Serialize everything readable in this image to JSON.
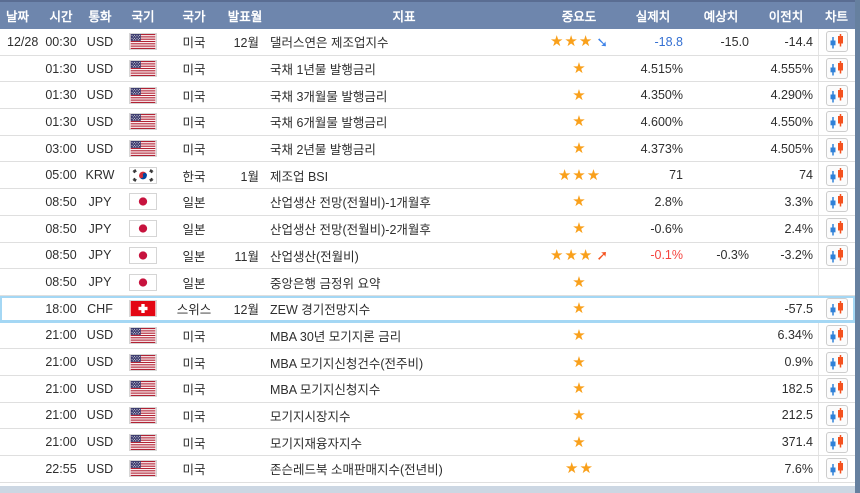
{
  "colors": {
    "header_bg": "#6E86AD",
    "star": "#F9A01B",
    "actual_blue": "#3470D2",
    "actual_red": "#F4443F",
    "arrow_up": "#F4511E",
    "arrow_down": "#3D82E8",
    "highlight_border": "#A4D7F4",
    "scrollbar": "#66809F"
  },
  "icons": {
    "star": "star-icon",
    "arrow_down": "southeast-arrow-icon",
    "arrow_up": "northeast-arrow-icon",
    "chart": "candlestick-chart-icon"
  },
  "table": {
    "columns": {
      "date": "날짜",
      "time": "시간",
      "currency": "통화",
      "flag": "국기",
      "country": "국가",
      "month": "발표월",
      "indicator": "지표",
      "importance": "중요도",
      "actual": "실제치",
      "forecast": "예상치",
      "previous": "이전치",
      "chart": "차트"
    },
    "rows": [
      {
        "date": "12/28",
        "time": "00:30",
        "currency": "USD",
        "flag": "us",
        "country": "미국",
        "month": "12월",
        "indicator": "댈러스연은 제조업지수",
        "stars": 3,
        "arrow": "down",
        "actual": "-18.8",
        "actual_color": "blue",
        "forecast": "-15.0",
        "previous": "-14.4",
        "chart": true,
        "highlighted": false
      },
      {
        "date": "",
        "time": "01:30",
        "currency": "USD",
        "flag": "us",
        "country": "미국",
        "month": "",
        "indicator": "국채 1년물 발행금리",
        "stars": 1,
        "arrow": "",
        "actual": "4.515%",
        "actual_color": "",
        "forecast": "",
        "previous": "4.555%",
        "chart": true,
        "highlighted": false
      },
      {
        "date": "",
        "time": "01:30",
        "currency": "USD",
        "flag": "us",
        "country": "미국",
        "month": "",
        "indicator": "국채 3개월물 발행금리",
        "stars": 1,
        "arrow": "",
        "actual": "4.350%",
        "actual_color": "",
        "forecast": "",
        "previous": "4.290%",
        "chart": true,
        "highlighted": false
      },
      {
        "date": "",
        "time": "01:30",
        "currency": "USD",
        "flag": "us",
        "country": "미국",
        "month": "",
        "indicator": "국채 6개월물 발행금리",
        "stars": 1,
        "arrow": "",
        "actual": "4.600%",
        "actual_color": "",
        "forecast": "",
        "previous": "4.550%",
        "chart": true,
        "highlighted": false
      },
      {
        "date": "",
        "time": "03:00",
        "currency": "USD",
        "flag": "us",
        "country": "미국",
        "month": "",
        "indicator": "국채 2년물 발행금리",
        "stars": 1,
        "arrow": "",
        "actual": "4.373%",
        "actual_color": "",
        "forecast": "",
        "previous": "4.505%",
        "chart": true,
        "highlighted": false
      },
      {
        "date": "",
        "time": "05:00",
        "currency": "KRW",
        "flag": "kr",
        "country": "한국",
        "month": "1월",
        "indicator": "제조업 BSI",
        "stars": 3,
        "arrow": "",
        "actual": "71",
        "actual_color": "",
        "forecast": "",
        "previous": "74",
        "chart": true,
        "highlighted": false
      },
      {
        "date": "",
        "time": "08:50",
        "currency": "JPY",
        "flag": "jp",
        "country": "일본",
        "month": "",
        "indicator": "산업생산 전망(전월비)-1개월후",
        "stars": 1,
        "arrow": "",
        "actual": "2.8%",
        "actual_color": "",
        "forecast": "",
        "previous": "3.3%",
        "chart": true,
        "highlighted": false
      },
      {
        "date": "",
        "time": "08:50",
        "currency": "JPY",
        "flag": "jp",
        "country": "일본",
        "month": "",
        "indicator": "산업생산 전망(전월비)-2개월후",
        "stars": 1,
        "arrow": "",
        "actual": "-0.6%",
        "actual_color": "",
        "forecast": "",
        "previous": "2.4%",
        "chart": true,
        "highlighted": false
      },
      {
        "date": "",
        "time": "08:50",
        "currency": "JPY",
        "flag": "jp",
        "country": "일본",
        "month": "11월",
        "indicator": "산업생산(전월비)",
        "stars": 3,
        "arrow": "up",
        "actual": "-0.1%",
        "actual_color": "red",
        "forecast": "-0.3%",
        "previous": "-3.2%",
        "chart": true,
        "highlighted": false
      },
      {
        "date": "",
        "time": "08:50",
        "currency": "JPY",
        "flag": "jp",
        "country": "일본",
        "month": "",
        "indicator": "중앙은행 금정위 요약",
        "stars": 1,
        "arrow": "",
        "actual": "",
        "actual_color": "",
        "forecast": "",
        "previous": "",
        "chart": false,
        "highlighted": false
      },
      {
        "date": "",
        "time": "18:00",
        "currency": "CHF",
        "flag": "ch",
        "country": "스위스",
        "month": "12월",
        "indicator": "ZEW 경기전망지수",
        "stars": 1,
        "arrow": "",
        "actual": "",
        "actual_color": "",
        "forecast": "",
        "previous": "-57.5",
        "chart": true,
        "highlighted": true
      },
      {
        "date": "",
        "time": "21:00",
        "currency": "USD",
        "flag": "us",
        "country": "미국",
        "month": "",
        "indicator": "MBA 30년 모기지론 금리",
        "stars": 1,
        "arrow": "",
        "actual": "",
        "actual_color": "",
        "forecast": "",
        "previous": "6.34%",
        "chart": true,
        "highlighted": false
      },
      {
        "date": "",
        "time": "21:00",
        "currency": "USD",
        "flag": "us",
        "country": "미국",
        "month": "",
        "indicator": "MBA 모기지신청건수(전주비)",
        "stars": 1,
        "arrow": "",
        "actual": "",
        "actual_color": "",
        "forecast": "",
        "previous": "0.9%",
        "chart": true,
        "highlighted": false
      },
      {
        "date": "",
        "time": "21:00",
        "currency": "USD",
        "flag": "us",
        "country": "미국",
        "month": "",
        "indicator": "MBA 모기지신청지수",
        "stars": 1,
        "arrow": "",
        "actual": "",
        "actual_color": "",
        "forecast": "",
        "previous": "182.5",
        "chart": true,
        "highlighted": false
      },
      {
        "date": "",
        "time": "21:00",
        "currency": "USD",
        "flag": "us",
        "country": "미국",
        "month": "",
        "indicator": "모기지시장지수",
        "stars": 1,
        "arrow": "",
        "actual": "",
        "actual_color": "",
        "forecast": "",
        "previous": "212.5",
        "chart": true,
        "highlighted": false
      },
      {
        "date": "",
        "time": "21:00",
        "currency": "USD",
        "flag": "us",
        "country": "미국",
        "month": "",
        "indicator": "모기지재융자지수",
        "stars": 1,
        "arrow": "",
        "actual": "",
        "actual_color": "",
        "forecast": "",
        "previous": "371.4",
        "chart": true,
        "highlighted": false
      },
      {
        "date": "",
        "time": "22:55",
        "currency": "USD",
        "flag": "us",
        "country": "미국",
        "month": "",
        "indicator": "존슨레드북 소매판매지수(전년비)",
        "stars": 2,
        "arrow": "",
        "actual": "",
        "actual_color": "",
        "forecast": "",
        "previous": "7.6%",
        "chart": true,
        "highlighted": false
      }
    ]
  }
}
